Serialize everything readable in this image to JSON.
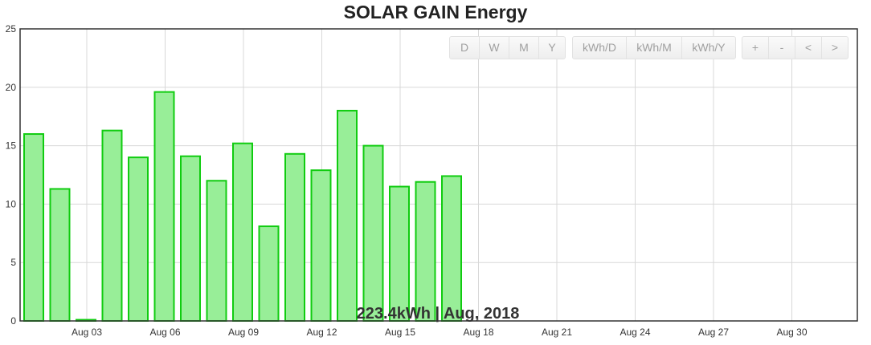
{
  "page": {
    "title": "SOLAR GAIN Energy"
  },
  "toolbar": {
    "range_buttons": [
      "D",
      "W",
      "M",
      "Y"
    ],
    "unit_buttons": [
      "kWh/D",
      "kWh/M",
      "kWh/Y"
    ],
    "nav_buttons": [
      "+",
      "-",
      "<",
      ">"
    ]
  },
  "summary": "223.4kWh | Aug, 2018",
  "colors": {
    "bar_fill": "#98ee98",
    "bar_stroke": "#10cc10",
    "grid": "#d8d8d8",
    "frame": "#333333"
  },
  "chart_data": {
    "type": "bar",
    "title": "SOLAR GAIN Energy",
    "xlabel": "",
    "ylabel": "",
    "ylim": [
      0,
      25
    ],
    "yticks": [
      0,
      5,
      10,
      15,
      20,
      25
    ],
    "xticks": [
      "Aug 03",
      "Aug 06",
      "Aug 09",
      "Aug 12",
      "Aug 15",
      "Aug 18",
      "Aug 21",
      "Aug 24",
      "Aug 27",
      "Aug 30"
    ],
    "categories": [
      "Aug 01",
      "Aug 02",
      "Aug 03",
      "Aug 04",
      "Aug 05",
      "Aug 06",
      "Aug 07",
      "Aug 08",
      "Aug 09",
      "Aug 10",
      "Aug 11",
      "Aug 12",
      "Aug 13",
      "Aug 14",
      "Aug 15",
      "Aug 16",
      "Aug 17"
    ],
    "values": [
      16.0,
      11.3,
      0.1,
      16.3,
      14.0,
      19.6,
      14.1,
      12.0,
      15.2,
      8.1,
      14.3,
      12.9,
      18.0,
      15.0,
      11.5,
      11.9,
      12.4
    ],
    "grid": true,
    "legend": "none"
  }
}
